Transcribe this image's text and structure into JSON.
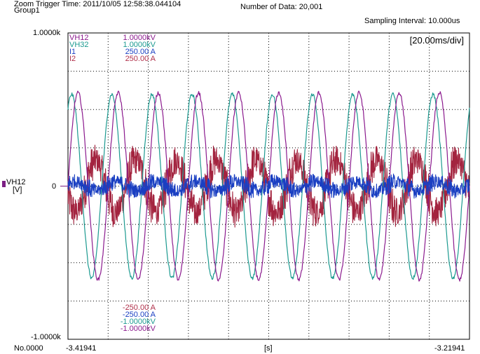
{
  "header": {
    "trigger": "Zoom Trigger Time: 2011/10/05 12:58:38.044104",
    "group": "Group1",
    "num_data": "Number of Data: 20,001",
    "sampling": "Sampling Interval:  10.000us"
  },
  "yaxis": {
    "top": "1.0000k",
    "bottom": "-1.0000k",
    "zero": "0",
    "channel": "VH12",
    "unit": "[V]",
    "channel_color": "#7b1f83"
  },
  "xaxis": {
    "no_label": "No.0000",
    "start": "-3.41941",
    "end": "-3.21941",
    "unit": "[s]"
  },
  "time_div": "[20.00ms/div]",
  "legend_top": [
    {
      "name": "VH12",
      "scale": "1.0000kV",
      "color": "#8b1a8e"
    },
    {
      "name": "VH32",
      "scale": "1.0000kV",
      "color": "#1c9a90"
    },
    {
      "name": "I1",
      "scale": "250.00 A",
      "color": "#1a3fc2"
    },
    {
      "name": "I2",
      "scale": "250.00 A",
      "color": "#b0304a"
    }
  ],
  "legend_bottom": [
    {
      "value": "-250.00 A",
      "color": "#b0304a"
    },
    {
      "value": "-250.00 A",
      "color": "#1a3fc2"
    },
    {
      "value": "-1.0000kV",
      "color": "#1c9a90"
    },
    {
      "value": "-1.0000kV",
      "color": "#8b1a8e"
    }
  ],
  "chart_data": {
    "type": "line",
    "xlabel": "[s]",
    "ylabel": "VH12 [V]",
    "xlim": [
      -3.41941,
      -3.21941
    ],
    "ylim": [
      -1000,
      1000
    ],
    "grid": true,
    "series": [
      {
        "name": "VH12",
        "color": "#8b1a8e",
        "kind": "sine",
        "amplitude": 610,
        "frequency_hz": 50,
        "phase_deg": 0,
        "noise": 0.02
      },
      {
        "name": "VH32",
        "color": "#1c9a90",
        "kind": "sine",
        "amplitude": 600,
        "frequency_hz": 50,
        "phase_deg": 57,
        "noise": 0.02
      },
      {
        "name": "I1",
        "color": "#1a3fc2",
        "kind": "noisy-sine",
        "amplitude": 30,
        "frequency_hz": 50,
        "phase_deg": 20,
        "noise_amplitude": 60
      },
      {
        "name": "I2",
        "color": "#a3243f",
        "kind": "noisy-sine",
        "amplitude": 170,
        "frequency_hz": 50,
        "phase_deg": 200,
        "noise_amplitude": 130
      }
    ]
  }
}
